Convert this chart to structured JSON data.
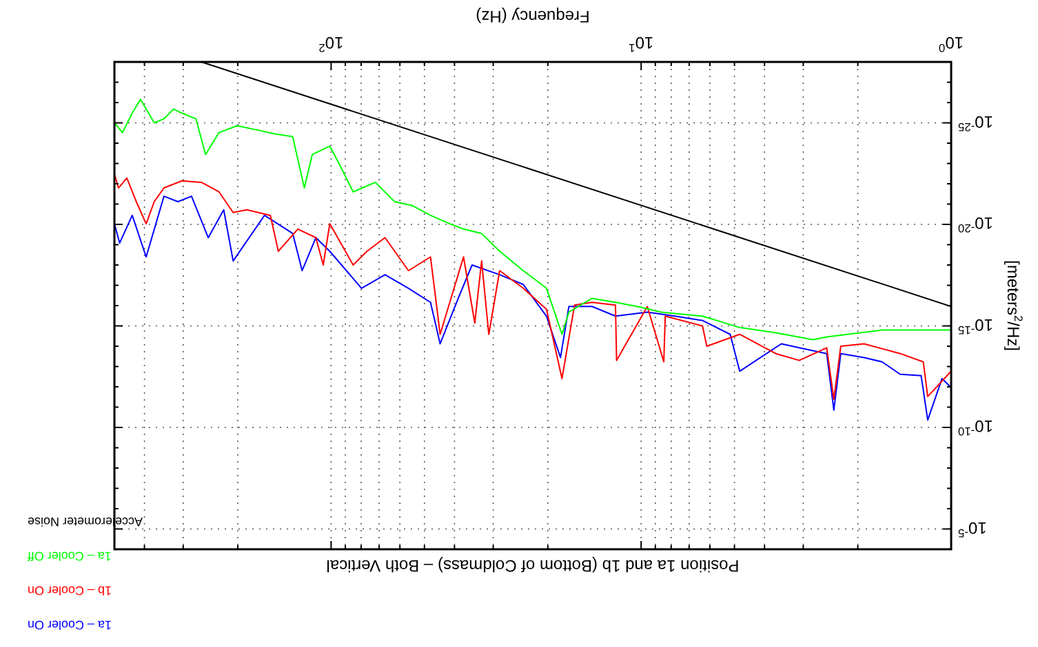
{
  "chart_data": {
    "type": "line",
    "title": "Position 1a and 1b (Bottom of Coldmass) – Both Vertical",
    "xlabel": "Frequency (Hz)",
    "ylabel": "[meters$^{2}$/Hz]",
    "log": "xy",
    "grid": true,
    "legend": "bottom left",
    "xlim": [
      500,
      1
    ],
    "ylim": [
      0.0001,
      1e-28
    ],
    "xticks": [
      {
        "value": 1,
        "label": "10$^{0}$"
      },
      {
        "value": 2,
        "label": null
      },
      {
        "value": 3,
        "label": null
      },
      {
        "value": 4,
        "label": null
      },
      {
        "value": 5,
        "label": null
      },
      {
        "value": 6,
        "label": null
      },
      {
        "value": 7,
        "label": null
      },
      {
        "value": 8,
        "label": null
      },
      {
        "value": 9,
        "label": null
      },
      {
        "value": 10,
        "label": "10$^{1}$"
      },
      {
        "value": 20,
        "label": null
      },
      {
        "value": 30,
        "label": null
      },
      {
        "value": 40,
        "label": null
      },
      {
        "value": 50,
        "label": null
      },
      {
        "value": 60,
        "label": null
      },
      {
        "value": 70,
        "label": null
      },
      {
        "value": 80,
        "label": null
      },
      {
        "value": 90,
        "label": null
      },
      {
        "value": 100,
        "label": "10$^{2}$"
      },
      {
        "value": 200,
        "label": null
      },
      {
        "value": 300,
        "label": null
      },
      {
        "value": 400,
        "label": null
      }
    ],
    "yticks": [
      {
        "value": 1e-27,
        "label": null
      },
      {
        "value": 1e-26,
        "label": null
      },
      {
        "value": 1e-25,
        "label": "10$^{-25}$"
      },
      {
        "value": 1e-24,
        "label": null
      },
      {
        "value": 1e-23,
        "label": null
      },
      {
        "value": 1e-22,
        "label": null
      },
      {
        "value": 1e-21,
        "label": null
      },
      {
        "value": 1e-20,
        "label": "10$^{-20}$"
      },
      {
        "value": 1e-19,
        "label": null
      },
      {
        "value": 1e-18,
        "label": null
      },
      {
        "value": 1e-17,
        "label": null
      },
      {
        "value": 1e-16,
        "label": null
      },
      {
        "value": 1e-15,
        "label": "10$^{-15}$"
      },
      {
        "value": 1e-14,
        "label": null
      },
      {
        "value": 1e-13,
        "label": null
      },
      {
        "value": 1e-12,
        "label": null
      },
      {
        "value": 1e-11,
        "label": null
      },
      {
        "value": 1e-10,
        "label": "10$^{-10}$"
      },
      {
        "value": 1e-09,
        "label": null
      },
      {
        "value": 1e-08,
        "label": null
      },
      {
        "value": 1e-07,
        "label": null
      },
      {
        "value": 1e-06,
        "label": null
      },
      {
        "value": 1e-05,
        "label": "10$^{-5}$"
      }
    ],
    "series": [
      {
        "name": "1a – Cooler On",
        "color": "#0000ff",
        "x": [
          1,
          1.07,
          1.19,
          1.25,
          1.46,
          1.67,
          1.91,
          2.27,
          2.39,
          2.52,
          3.09,
          3.53,
          4.81,
          5.16,
          6.34,
          7.78,
          9.55,
          12.1,
          14.4,
          17.1,
          18.2,
          20.2,
          24.0,
          28.6,
          35.1,
          38.9,
          44.5,
          47.8,
          56.3,
          67.0,
          79.8,
          101,
          112,
          124,
          133,
          164,
          207,
          222,
          249,
          282,
          312,
          346,
          395,
          438,
          481,
          500
        ],
        "values": [
          1.1e-12,
          3.9e-13,
          4.3e-11,
          2.8e-13,
          2.4e-13,
          5.9e-14,
          3.6e-14,
          2.3e-14,
          1.4e-11,
          2.3e-14,
          1.2e-14,
          7.6e-15,
          1.7e-13,
          2.6e-15,
          5.4e-16,
          3.3e-16,
          2.1e-16,
          3.3e-16,
          1.1e-16,
          1.1e-16,
          3.6e-14,
          3.3e-16,
          9.1e-18,
          3e-18,
          1e-18,
          4.4e-17,
          7.6e-15,
          6.9e-17,
          1.4e-17,
          3e-18,
          1.4e-17,
          2.1e-19,
          4.5e-20,
          1.9e-18,
          2.8e-20,
          3.6e-21,
          6.3e-19,
          1.9e-21,
          4.5e-20,
          4.1e-22,
          7.6e-22,
          4.1e-22,
          4e-19,
          3.6e-21,
          8.3e-20,
          9.3e-21
        ]
      },
      {
        "name": "1b – Cooler On",
        "color": "#ff0000",
        "x": [
          1,
          1.19,
          1.23,
          1.46,
          1.91,
          2.27,
          2.39,
          2.52,
          3.09,
          3.68,
          4.81,
          6.14,
          6.34,
          8.36,
          8.45,
          9.55,
          12.0,
          12.1,
          14.4,
          16.4,
          18.0,
          20.2,
          24.0,
          28.6,
          31.0,
          32.7,
          34.4,
          37.4,
          44.5,
          47.8,
          56.3,
          67.0,
          76.6,
          84.9,
          101,
          106,
          112,
          128,
          148,
          157,
          187,
          207,
          230,
          262,
          303,
          346,
          372,
          395,
          425,
          456,
          485,
          500
        ],
        "values": [
          1.7e-13,
          3e-12,
          5.9e-14,
          2.3e-14,
          7.6e-15,
          1e-14,
          4.1e-12,
          1.2e-14,
          5e-14,
          2.3e-14,
          2.6e-15,
          1e-14,
          1e-15,
          3.3e-16,
          5.9e-14,
          1.1e-16,
          5e-14,
          9.5e-17,
          6.9e-17,
          9.5e-17,
          3.9e-13,
          1.5e-16,
          1.4e-17,
          1.9e-18,
          2.6e-15,
          6.3e-19,
          7.2e-16,
          4e-19,
          2.6e-15,
          4e-19,
          1.9e-18,
          4.5e-20,
          2.1e-19,
          1e-18,
          9.3e-21,
          1e-18,
          4.5e-20,
          1.7e-20,
          2.1e-19,
          3.6e-21,
          1.9e-21,
          2.6e-21,
          2.5e-22,
          8.5e-23,
          7.2e-23,
          1.6e-22,
          7.6e-22,
          9.3e-21,
          7.6e-22,
          5.2e-23,
          1.6e-22,
          3.3e-23
        ]
      },
      {
        "name": "1a – Cooler Off",
        "color": "#00ff00",
        "x": [
          1,
          1.67,
          2.52,
          2.79,
          3.68,
          4.81,
          6.34,
          8.61,
          10.3,
          12.1,
          14.4,
          17.1,
          18.0,
          20.2,
          24.0,
          28.6,
          32.7,
          37.4,
          41.4,
          47.8,
          54.6,
          62.4,
          72.0,
          84.9,
          94.0,
          101,
          115,
          122,
          133,
          152,
          174,
          201,
          230,
          254,
          273,
          303,
          322,
          346,
          372,
          412,
          438,
          471,
          500
        ],
        "values": [
          1.6e-15,
          1.6e-15,
          3.5e-15,
          4.8e-15,
          2.2e-15,
          1.2e-15,
          3.3e-16,
          2.1e-16,
          1.1e-16,
          6.9e-17,
          4.4e-17,
          2.1e-16,
          2.6e-15,
          1.4e-17,
          1.9e-18,
          2.1e-19,
          2.8e-20,
          1.7e-20,
          9.3e-21,
          3.6e-21,
          1.2e-21,
          7.6e-22,
          8.5e-23,
          2.5e-22,
          1.1e-23,
          1.4e-24,
          3.6e-24,
          1.6e-22,
          4.8e-25,
          3.5e-25,
          2.2e-25,
          1.4e-25,
          3e-25,
          3.6e-24,
          6.3e-26,
          3.3e-26,
          2.1e-26,
          6.3e-26,
          1e-25,
          6.9e-27,
          3.3e-26,
          3e-25,
          1e-25
        ]
      },
      {
        "name": "Accelerometer Noise",
        "color": "#000000",
        "x": [
          1,
          262
        ],
        "values": [
          1.1e-16,
          1e-28
        ]
      }
    ]
  }
}
